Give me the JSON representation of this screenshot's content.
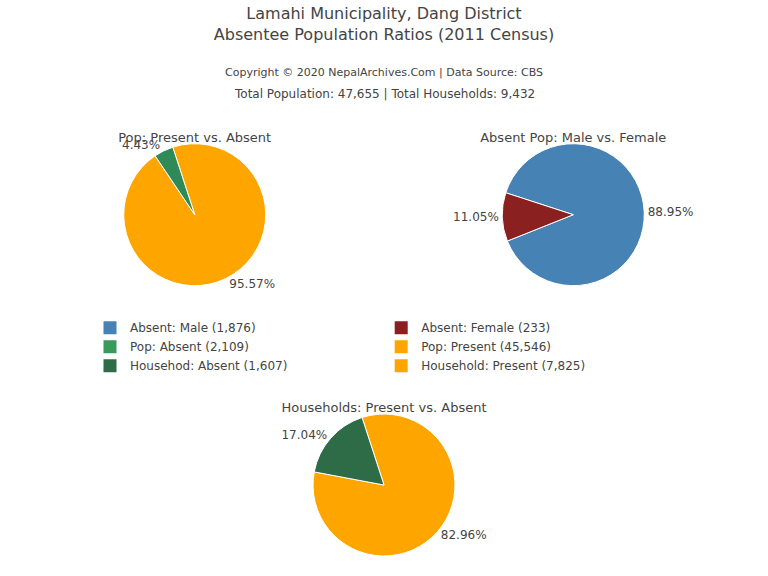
{
  "title": "Lamahi Municipality, Dang District",
  "subtitle": "Absentee Population Ratios (2011 Census)",
  "annotations": [
    "Copyright © 2020 NepalArchives.Com | Data Source: CBS",
    "Total Population: 47,655 | Total Households: 9,432"
  ],
  "legend": "center",
  "series": [
    {
      "name": "Absent: Male (1,876)",
      "color": "#4682B4"
    },
    {
      "name": "Absent: Female (233)",
      "color": "#8B2020"
    },
    {
      "name": "Pop: Absent (2,109)",
      "color": "#3A9A5C"
    },
    {
      "name": "Pop: Present (45,546)",
      "color": "#FFA500"
    },
    {
      "name": "Househod: Absent (1,607)",
      "color": "#2E6B47"
    },
    {
      "name": "Household: Present (7,825)",
      "color": "#FFA500"
    }
  ],
  "chart_data": [
    {
      "type": "pie",
      "title": "Pop: Present vs. Absent",
      "values": [
        95.57,
        4.43
      ],
      "value_labels": [
        "95.57%",
        "4.43%"
      ],
      "colors": [
        "#FFA500",
        "#2E8B57"
      ],
      "data_labels": true
    },
    {
      "type": "pie",
      "title": "Absent Pop: Male vs. Female",
      "values": [
        88.95,
        11.05
      ],
      "value_labels": [
        "88.95%",
        "11.05%"
      ],
      "colors": [
        "#4682B4",
        "#8B2020"
      ],
      "data_labels": true
    },
    {
      "type": "pie",
      "title": "Households: Present vs. Absent",
      "values": [
        82.96,
        17.04
      ],
      "value_labels": [
        "82.96%",
        "17.04%"
      ],
      "colors": [
        "#FFA500",
        "#2E6B47"
      ],
      "data_labels": true
    }
  ]
}
